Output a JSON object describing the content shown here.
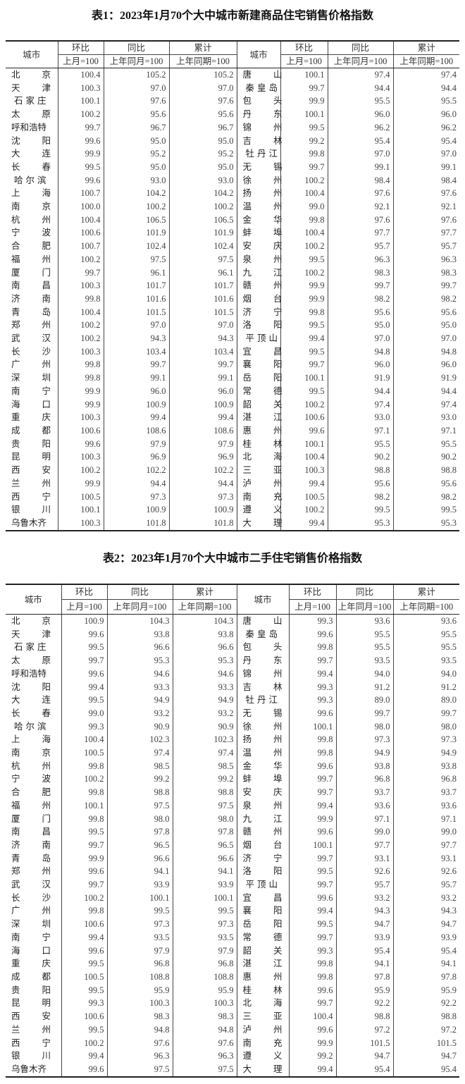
{
  "tables": [
    {
      "title": "表1：2023年1月70个大中城市新建商品住宅销售价格指数",
      "headers": {
        "city": "城市",
        "huanbi": "环比",
        "tongbi": "同比",
        "leiji": "累计",
        "huanbi_base": "上月=100",
        "tongbi_base": "上年同月=100",
        "leiji_base": "上年同期=100"
      },
      "rows": [
        {
          "left": [
            "北京",
            "100.4",
            "105.2",
            "105.2"
          ],
          "right": [
            "唐山",
            "100.1",
            "97.4",
            "97.4"
          ]
        },
        {
          "left": [
            "天津",
            "100.3",
            "97.0",
            "97.0"
          ],
          "right": [
            "秦皇岛",
            "99.7",
            "94.4",
            "94.4"
          ]
        },
        {
          "left": [
            "石家庄",
            "100.1",
            "97.6",
            "97.6"
          ],
          "right": [
            "包头",
            "99.9",
            "95.5",
            "95.5"
          ]
        },
        {
          "left": [
            "太原",
            "100.2",
            "95.6",
            "95.6"
          ],
          "right": [
            "丹东",
            "100.1",
            "96.0",
            "96.0"
          ]
        },
        {
          "left": [
            "呼和浩特",
            "99.7",
            "96.7",
            "96.7"
          ],
          "right": [
            "锦州",
            "99.5",
            "96.2",
            "96.2"
          ]
        },
        {
          "left": [
            "沈阳",
            "99.6",
            "95.0",
            "95.0"
          ],
          "right": [
            "吉林",
            "99.2",
            "95.4",
            "95.4"
          ]
        },
        {
          "left": [
            "大连",
            "99.9",
            "95.2",
            "95.2"
          ],
          "right": [
            "牡丹江",
            "99.8",
            "97.0",
            "97.0"
          ]
        },
        {
          "left": [
            "长春",
            "99.5",
            "95.0",
            "95.0"
          ],
          "right": [
            "无锡",
            "99.7",
            "99.1",
            "99.1"
          ]
        },
        {
          "left": [
            "哈尔滨",
            "99.6",
            "93.0",
            "93.0"
          ],
          "right": [
            "徐州",
            "100.2",
            "98.4",
            "98.4"
          ]
        },
        {
          "left": [
            "上海",
            "100.7",
            "104.2",
            "104.2"
          ],
          "right": [
            "扬州",
            "100.4",
            "97.6",
            "97.6"
          ]
        },
        {
          "left": [
            "南京",
            "100.0",
            "100.2",
            "100.2"
          ],
          "right": [
            "温州",
            "99.0",
            "92.1",
            "92.1"
          ]
        },
        {
          "left": [
            "杭州",
            "100.4",
            "106.5",
            "106.5"
          ],
          "right": [
            "金华",
            "99.8",
            "97.6",
            "97.6"
          ]
        },
        {
          "left": [
            "宁波",
            "100.6",
            "101.9",
            "101.9"
          ],
          "right": [
            "蚌埠",
            "100.4",
            "97.7",
            "97.7"
          ]
        },
        {
          "left": [
            "合肥",
            "100.7",
            "102.4",
            "102.4"
          ],
          "right": [
            "安庆",
            "100.2",
            "95.7",
            "95.7"
          ]
        },
        {
          "left": [
            "福州",
            "100.2",
            "97.5",
            "97.5"
          ],
          "right": [
            "泉州",
            "99.5",
            "96.3",
            "96.3"
          ]
        },
        {
          "left": [
            "厦门",
            "99.7",
            "96.1",
            "96.1"
          ],
          "right": [
            "九江",
            "100.2",
            "98.3",
            "98.3"
          ]
        },
        {
          "left": [
            "南昌",
            "100.3",
            "101.7",
            "101.7"
          ],
          "right": [
            "赣州",
            "99.9",
            "99.7",
            "99.7"
          ]
        },
        {
          "left": [
            "济南",
            "99.8",
            "101.6",
            "101.6"
          ],
          "right": [
            "烟台",
            "99.9",
            "98.2",
            "98.2"
          ]
        },
        {
          "left": [
            "青岛",
            "100.4",
            "101.5",
            "101.5"
          ],
          "right": [
            "济宁",
            "99.8",
            "95.6",
            "95.6"
          ]
        },
        {
          "left": [
            "郑州",
            "100.2",
            "97.0",
            "97.0"
          ],
          "right": [
            "洛阳",
            "99.5",
            "95.0",
            "95.0"
          ]
        },
        {
          "left": [
            "武汉",
            "100.2",
            "94.3",
            "94.3"
          ],
          "right": [
            "平顶山",
            "99.4",
            "97.0",
            "97.0"
          ]
        },
        {
          "left": [
            "长沙",
            "100.3",
            "103.4",
            "103.4"
          ],
          "right": [
            "宜昌",
            "99.5",
            "94.8",
            "94.8"
          ]
        },
        {
          "left": [
            "广州",
            "99.8",
            "99.7",
            "99.7"
          ],
          "right": [
            "襄阳",
            "99.7",
            "96.0",
            "96.0"
          ]
        },
        {
          "left": [
            "深圳",
            "99.8",
            "99.1",
            "99.1"
          ],
          "right": [
            "岳阳",
            "100.1",
            "91.9",
            "91.9"
          ]
        },
        {
          "left": [
            "南宁",
            "99.9",
            "96.0",
            "96.0"
          ],
          "right": [
            "常德",
            "99.5",
            "94.4",
            "94.4"
          ]
        },
        {
          "left": [
            "海口",
            "99.9",
            "100.9",
            "100.9"
          ],
          "right": [
            "韶关",
            "100.2",
            "97.4",
            "97.4"
          ]
        },
        {
          "left": [
            "重庆",
            "100.3",
            "99.4",
            "99.4"
          ],
          "right": [
            "湛江",
            "100.6",
            "93.0",
            "93.0"
          ]
        },
        {
          "left": [
            "成都",
            "100.6",
            "108.6",
            "108.6"
          ],
          "right": [
            "惠州",
            "99.6",
            "97.1",
            "97.1"
          ]
        },
        {
          "left": [
            "贵阳",
            "99.6",
            "97.9",
            "97.9"
          ],
          "right": [
            "桂林",
            "100.1",
            "95.5",
            "95.5"
          ]
        },
        {
          "left": [
            "昆明",
            "100.3",
            "96.9",
            "96.9"
          ],
          "right": [
            "北海",
            "100.4",
            "90.2",
            "90.2"
          ]
        },
        {
          "left": [
            "西安",
            "100.2",
            "102.2",
            "102.2"
          ],
          "right": [
            "三亚",
            "100.3",
            "98.8",
            "98.8"
          ]
        },
        {
          "left": [
            "兰州",
            "99.9",
            "94.4",
            "94.4"
          ],
          "right": [
            "泸州",
            "99.4",
            "95.6",
            "95.6"
          ]
        },
        {
          "left": [
            "西宁",
            "100.5",
            "97.3",
            "97.3"
          ],
          "right": [
            "南充",
            "100.5",
            "98.2",
            "98.2"
          ]
        },
        {
          "left": [
            "银川",
            "100.1",
            "100.9",
            "100.9"
          ],
          "right": [
            "遵义",
            "100.2",
            "99.5",
            "99.5"
          ]
        },
        {
          "left": [
            "乌鲁木齐",
            "100.3",
            "101.8",
            "101.8"
          ],
          "right": [
            "大理",
            "99.4",
            "95.3",
            "95.3"
          ]
        }
      ]
    },
    {
      "title": "表2：2023年1月70个大中城市二手住宅销售价格指数",
      "headers": {
        "city": "城市",
        "huanbi": "环比",
        "tongbi": "同比",
        "leiji": "累计",
        "huanbi_base": "上月=100",
        "tongbi_base": "上年同月=100",
        "leiji_base": "上年同期=100"
      },
      "rows": [
        {
          "left": [
            "北京",
            "100.9",
            "104.3",
            "104.3"
          ],
          "right": [
            "唐山",
            "99.3",
            "93.6",
            "93.6"
          ]
        },
        {
          "left": [
            "天津",
            "99.6",
            "93.8",
            "93.8"
          ],
          "right": [
            "秦皇岛",
            "99.6",
            "95.5",
            "95.5"
          ]
        },
        {
          "left": [
            "石家庄",
            "99.5",
            "96.6",
            "96.6"
          ],
          "right": [
            "包头",
            "99.8",
            "95.5",
            "95.5"
          ]
        },
        {
          "left": [
            "太原",
            "99.7",
            "95.3",
            "95.3"
          ],
          "right": [
            "丹东",
            "99.7",
            "93.5",
            "93.5"
          ]
        },
        {
          "left": [
            "呼和浩特",
            "99.6",
            "94.6",
            "94.6"
          ],
          "right": [
            "锦州",
            "99.4",
            "94.0",
            "94.0"
          ]
        },
        {
          "left": [
            "沈阳",
            "99.4",
            "93.3",
            "93.3"
          ],
          "right": [
            "吉林",
            "99.3",
            "91.2",
            "91.2"
          ]
        },
        {
          "left": [
            "大连",
            "99.5",
            "94.9",
            "94.9"
          ],
          "right": [
            "牡丹江",
            "99.3",
            "89.0",
            "89.0"
          ]
        },
        {
          "left": [
            "长春",
            "99.0",
            "93.2",
            "93.2"
          ],
          "right": [
            "无锡",
            "99.6",
            "99.7",
            "99.7"
          ]
        },
        {
          "left": [
            "哈尔滨",
            "99.3",
            "90.9",
            "90.9"
          ],
          "right": [
            "徐州",
            "100.1",
            "98.0",
            "98.0"
          ]
        },
        {
          "left": [
            "上海",
            "100.4",
            "102.3",
            "102.3"
          ],
          "right": [
            "扬州",
            "99.8",
            "97.3",
            "97.3"
          ]
        },
        {
          "left": [
            "南京",
            "100.5",
            "97.4",
            "97.4"
          ],
          "right": [
            "温州",
            "99.8",
            "94.9",
            "94.9"
          ]
        },
        {
          "left": [
            "杭州",
            "99.8",
            "98.5",
            "98.5"
          ],
          "right": [
            "金华",
            "99.6",
            "93.8",
            "93.8"
          ]
        },
        {
          "left": [
            "宁波",
            "100.2",
            "99.2",
            "99.2"
          ],
          "right": [
            "蚌埠",
            "99.7",
            "96.8",
            "96.8"
          ]
        },
        {
          "left": [
            "合肥",
            "99.8",
            "98.8",
            "98.8"
          ],
          "right": [
            "安庆",
            "99.7",
            "93.7",
            "93.7"
          ]
        },
        {
          "left": [
            "福州",
            "100.1",
            "97.5",
            "97.5"
          ],
          "right": [
            "泉州",
            "99.4",
            "93.6",
            "93.6"
          ]
        },
        {
          "left": [
            "厦门",
            "99.8",
            "98.0",
            "98.0"
          ],
          "right": [
            "九江",
            "99.9",
            "97.1",
            "97.1"
          ]
        },
        {
          "left": [
            "南昌",
            "99.5",
            "97.8",
            "97.8"
          ],
          "right": [
            "赣州",
            "99.6",
            "99.0",
            "99.0"
          ]
        },
        {
          "left": [
            "济南",
            "99.7",
            "96.5",
            "96.5"
          ],
          "right": [
            "烟台",
            "100.1",
            "97.7",
            "97.7"
          ]
        },
        {
          "left": [
            "青岛",
            "99.9",
            "96.6",
            "96.6"
          ],
          "right": [
            "济宁",
            "99.7",
            "93.1",
            "93.1"
          ]
        },
        {
          "left": [
            "郑州",
            "99.6",
            "94.1",
            "94.1"
          ],
          "right": [
            "洛阳",
            "99.5",
            "92.6",
            "92.6"
          ]
        },
        {
          "left": [
            "武汉",
            "99.7",
            "93.9",
            "93.9"
          ],
          "right": [
            "平顶山",
            "99.7",
            "95.7",
            "95.7"
          ]
        },
        {
          "left": [
            "长沙",
            "100.2",
            "100.1",
            "100.1"
          ],
          "right": [
            "宜昌",
            "99.6",
            "93.2",
            "93.2"
          ]
        },
        {
          "left": [
            "广州",
            "99.8",
            "99.5",
            "99.5"
          ],
          "right": [
            "襄阳",
            "99.4",
            "94.3",
            "94.3"
          ]
        },
        {
          "left": [
            "深圳",
            "100.6",
            "97.3",
            "97.3"
          ],
          "right": [
            "岳阳",
            "99.5",
            "94.7",
            "94.7"
          ]
        },
        {
          "left": [
            "南宁",
            "99.4",
            "93.5",
            "93.5"
          ],
          "right": [
            "常德",
            "99.7",
            "93.9",
            "93.9"
          ]
        },
        {
          "left": [
            "海口",
            "99.6",
            "97.9",
            "97.9"
          ],
          "right": [
            "韶关",
            "99.3",
            "95.4",
            "95.4"
          ]
        },
        {
          "left": [
            "重庆",
            "99.5",
            "96.8",
            "96.8"
          ],
          "right": [
            "湛江",
            "99.8",
            "94.1",
            "94.1"
          ]
        },
        {
          "left": [
            "成都",
            "100.5",
            "108.8",
            "108.8"
          ],
          "right": [
            "惠州",
            "99.8",
            "97.8",
            "97.8"
          ]
        },
        {
          "left": [
            "贵阳",
            "99.5",
            "95.9",
            "95.9"
          ],
          "right": [
            "桂林",
            "99.6",
            "95.9",
            "95.9"
          ]
        },
        {
          "left": [
            "昆明",
            "99.3",
            "100.3",
            "100.3"
          ],
          "right": [
            "北海",
            "99.7",
            "92.2",
            "92.2"
          ]
        },
        {
          "left": [
            "西安",
            "100.6",
            "98.3",
            "98.3"
          ],
          "right": [
            "三亚",
            "100.4",
            "98.8",
            "98.8"
          ]
        },
        {
          "left": [
            "兰州",
            "99.5",
            "94.8",
            "94.8"
          ],
          "right": [
            "泸州",
            "99.6",
            "97.2",
            "97.2"
          ]
        },
        {
          "left": [
            "西宁",
            "100.2",
            "97.6",
            "97.6"
          ],
          "right": [
            "南充",
            "99.9",
            "101.5",
            "101.5"
          ]
        },
        {
          "left": [
            "银川",
            "99.4",
            "96.3",
            "96.3"
          ],
          "right": [
            "遵义",
            "99.2",
            "94.7",
            "94.7"
          ]
        },
        {
          "left": [
            "乌鲁木齐",
            "99.6",
            "97.5",
            "97.5"
          ],
          "right": [
            "大理",
            "99.4",
            "95.4",
            "95.4"
          ]
        }
      ]
    }
  ]
}
